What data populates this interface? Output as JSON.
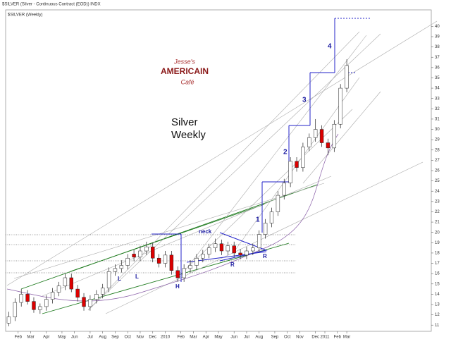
{
  "chart_data": {
    "type": "candlestick",
    "header": "$SILVER (Silver - Continuous Contract (EOD)) INDX",
    "title": "$SILVER (Weekly)",
    "annotations": [
      "Silver",
      "Weekly",
      "neck",
      "L",
      "L",
      "H",
      "R",
      "R",
      "1",
      "2",
      "3",
      "4"
    ],
    "logo": [
      "Jesse's",
      "AMERICAIN",
      "Café"
    ],
    "up_color": "#ffffff",
    "down_color": "#dd0000",
    "x": [
      0,
      2,
      4,
      6,
      8,
      10,
      12,
      14,
      16,
      18,
      20,
      22,
      24,
      26,
      28,
      30,
      32,
      34,
      36,
      38,
      40,
      42,
      44,
      46,
      48,
      50,
      52,
      54,
      56,
      58,
      60,
      62,
      64,
      66,
      68,
      70,
      72,
      74,
      76,
      78,
      80,
      82,
      84,
      86,
      88,
      90,
      92,
      94,
      96,
      98,
      100,
      102,
      104,
      106,
      108
    ],
    "open": [
      11.2,
      11.8,
      13.2,
      14.0,
      13.3,
      12.5,
      12.8,
      13.5,
      14.2,
      14.8,
      15.6,
      14.5,
      13.7,
      12.8,
      13.5,
      14.0,
      14.6,
      16.2,
      16.5,
      16.8,
      17.9,
      17.6,
      18.2,
      18.6,
      17.5,
      17.0,
      17.8,
      16.3,
      15.6,
      16.5,
      16.8,
      17.5,
      17.9,
      18.5,
      18.9,
      18.2,
      18.7,
      18.0,
      17.8,
      18.2,
      18.5,
      19.8,
      20.9,
      22.0,
      23.6,
      24.8,
      26.9,
      26.3,
      28.3,
      29.2,
      30.0,
      28.7,
      28.2,
      30.5,
      34.0
    ],
    "high": [
      12.3,
      13.6,
      14.5,
      14.4,
      13.7,
      13.1,
      13.9,
      14.6,
      15.2,
      16.0,
      16.0,
      14.9,
      14.1,
      13.9,
      14.4,
      15.0,
      16.6,
      16.9,
      17.3,
      17.9,
      18.3,
      18.7,
      19.1,
      19.0,
      17.9,
      18.2,
      18.2,
      16.7,
      16.9,
      17.3,
      17.9,
      18.3,
      18.9,
      19.4,
      19.3,
      19.1,
      19.1,
      18.4,
      18.6,
      18.9,
      20.2,
      21.3,
      22.4,
      24.0,
      25.2,
      27.3,
      27.3,
      28.7,
      29.6,
      31.0,
      30.4,
      29.1,
      30.9,
      34.4,
      36.8
    ],
    "low": [
      10.9,
      11.4,
      12.8,
      13.0,
      12.2,
      12.1,
      12.4,
      13.1,
      13.8,
      14.4,
      14.2,
      13.3,
      12.4,
      12.4,
      13.1,
      13.6,
      14.2,
      15.8,
      16.1,
      16.4,
      17.2,
      17.2,
      17.8,
      17.1,
      16.6,
      16.6,
      15.9,
      15.2,
      15.2,
      16.1,
      16.4,
      17.1,
      17.5,
      18.1,
      17.8,
      17.8,
      17.6,
      17.4,
      17.4,
      17.8,
      18.1,
      19.4,
      20.5,
      21.6,
      23.2,
      24.4,
      25.9,
      25.9,
      27.9,
      28.8,
      28.3,
      27.5,
      27.8,
      30.1,
      33.6
    ],
    "close": [
      11.8,
      13.2,
      14.0,
      13.3,
      12.5,
      12.8,
      13.5,
      14.2,
      14.8,
      15.6,
      14.5,
      13.7,
      12.8,
      13.5,
      14.0,
      14.6,
      16.2,
      16.5,
      16.8,
      17.5,
      17.6,
      18.2,
      18.6,
      17.5,
      17.0,
      17.8,
      16.3,
      15.6,
      16.5,
      16.8,
      17.5,
      17.9,
      18.5,
      18.9,
      18.2,
      18.7,
      18.0,
      17.8,
      18.2,
      18.5,
      19.8,
      20.9,
      22.0,
      23.6,
      24.8,
      26.9,
      26.3,
      28.3,
      29.2,
      30.0,
      28.7,
      28.2,
      30.5,
      34.0,
      36.2
    ],
    "xlim": [
      -1,
      135
    ],
    "ylim": [
      10.4,
      41.6
    ],
    "yticks": [
      11,
      12,
      13,
      14,
      15,
      16,
      17,
      18,
      19,
      20,
      21,
      22,
      23,
      24,
      25,
      26,
      27,
      28,
      29,
      30,
      31,
      32,
      33,
      34,
      35,
      36,
      37,
      38,
      39,
      40
    ],
    "xticks": [
      {
        "value": 3,
        "label": "Feb"
      },
      {
        "value": 7,
        "label": "Mar"
      },
      {
        "value": 12,
        "label": "Apr"
      },
      {
        "value": 17,
        "label": "May"
      },
      {
        "value": 21,
        "label": "Jun"
      },
      {
        "value": 26,
        "label": "Jul"
      },
      {
        "value": 30,
        "label": "Aug"
      },
      {
        "value": 34,
        "label": "Sep"
      },
      {
        "value": 38,
        "label": "Oct"
      },
      {
        "value": 42,
        "label": "Nov"
      },
      {
        "value": 46,
        "label": "Dec"
      },
      {
        "value": 50,
        "label": "2010"
      },
      {
        "value": 55,
        "label": "Feb"
      },
      {
        "value": 59,
        "label": "Mar"
      },
      {
        "value": 63,
        "label": "Apr"
      },
      {
        "value": 67,
        "label": "May"
      },
      {
        "value": 72,
        "label": "Jun"
      },
      {
        "value": 76,
        "label": "Jul"
      },
      {
        "value": 80,
        "label": "Aug"
      },
      {
        "value": 85,
        "label": "Sep"
      },
      {
        "value": 89,
        "label": "Oct"
      },
      {
        "value": 93,
        "label": "Nov"
      },
      {
        "value": 98,
        "label": "Dec"
      },
      {
        "value": 101,
        "label": "2011"
      },
      {
        "value": 105,
        "label": "Feb"
      },
      {
        "value": 108,
        "label": "Mar"
      }
    ]
  }
}
